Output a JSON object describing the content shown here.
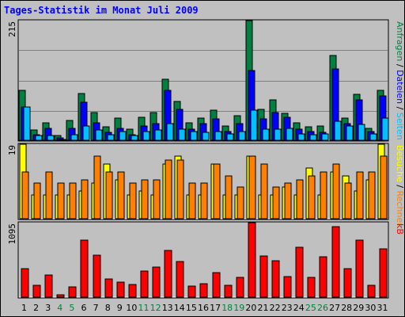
{
  "title": "Tages-Statistik im Monat Juli 2009",
  "colors": {
    "anfragen": "#008040",
    "dateien": "#0000ff",
    "seiten": "#00c0ff",
    "besuche": "#ffff00",
    "rechner": "#ff8000",
    "kb": "#ff0000",
    "weekday": "#000000",
    "weekend": "#008040",
    "background": "#c0c0c0",
    "plot_background": "#c0c0c0"
  },
  "chart_data": [
    {
      "type": "bar",
      "name": "hits",
      "ymax_label": "215",
      "ylim": [
        0,
        215
      ],
      "right_label": {
        "parts": [
          {
            "text": "Anfragen",
            "color": "#008040"
          },
          {
            "text": " / ",
            "color": "#000000"
          },
          {
            "text": "Dateien",
            "color": "#0000ff"
          },
          {
            "text": " / ",
            "color": "#000000"
          },
          {
            "text": "Seiten",
            "color": "#00c0ff"
          }
        ]
      },
      "categories": [
        "1",
        "2",
        "3",
        "4",
        "5",
        "6",
        "7",
        "8",
        "9",
        "10",
        "11",
        "12",
        "13",
        "14",
        "15",
        "16",
        "17",
        "18",
        "19",
        "20",
        "21",
        "22",
        "23",
        "24",
        "25",
        "26",
        "27",
        "28",
        "29",
        "30",
        "31"
      ],
      "series": [
        {
          "name": "Anfragen",
          "color": "#008040",
          "values": [
            90,
            18,
            32,
            8,
            36,
            84,
            50,
            24,
            40,
            20,
            42,
            50,
            109,
            70,
            32,
            40,
            54,
            26,
            44,
            215,
            56,
            73,
            48,
            32,
            24,
            26,
            152,
            40,
            82,
            22,
            90
          ]
        },
        {
          "name": "Dateien",
          "color": "#0000ff",
          "values": [
            60,
            10,
            22,
            4,
            22,
            68,
            32,
            14,
            22,
            10,
            26,
            30,
            90,
            56,
            20,
            30,
            38,
            16,
            30,
            125,
            38,
            50,
            42,
            20,
            16,
            14,
            128,
            30,
            72,
            16,
            80
          ]
        },
        {
          "name": "Seiten",
          "color": "#00c0ff",
          "values": [
            60,
            8,
            8,
            2,
            10,
            26,
            18,
            10,
            16,
            8,
            16,
            18,
            30,
            20,
            16,
            14,
            16,
            12,
            16,
            54,
            20,
            20,
            22,
            12,
            10,
            12,
            34,
            26,
            28,
            12,
            40
          ]
        }
      ]
    },
    {
      "type": "bar",
      "name": "visits",
      "ymax_label": "19",
      "ylim": [
        0,
        19
      ],
      "right_label": {
        "parts": [
          {
            "text": "Besuche",
            "color": "#ffff00"
          },
          {
            "text": " / ",
            "color": "#000000"
          },
          {
            "text": "Rechner",
            "color": "#ff8000"
          }
        ]
      },
      "categories": [
        "1",
        "2",
        "3",
        "4",
        "5",
        "6",
        "7",
        "8",
        "9",
        "10",
        "11",
        "12",
        "13",
        "14",
        "15",
        "16",
        "17",
        "18",
        "19",
        "20",
        "21",
        "22",
        "23",
        "24",
        "25",
        "26",
        "27",
        "28",
        "29",
        "30",
        "31"
      ],
      "series": [
        {
          "name": "Besuche",
          "color": "#ffff00",
          "values": [
            19,
            6,
            6,
            6,
            6,
            7,
            9,
            14,
            10,
            6,
            7,
            6,
            14,
            16,
            6,
            6,
            14,
            6,
            6,
            16,
            6,
            6,
            8,
            6,
            13,
            6,
            12,
            11,
            7,
            10,
            19
          ]
        },
        {
          "name": "Rechner",
          "color": "#ff8000",
          "values": [
            12,
            9,
            12,
            9,
            9,
            10,
            16,
            12,
            12,
            9,
            10,
            10,
            15,
            15,
            9,
            9,
            14,
            11,
            8,
            16,
            14,
            8,
            9,
            10,
            11,
            12,
            14,
            9,
            12,
            12,
            16
          ]
        }
      ]
    },
    {
      "type": "bar",
      "name": "kb",
      "ymax_label": "1095",
      "ylim": [
        0,
        1095
      ],
      "right_label": {
        "parts": [
          {
            "text": "kB",
            "color": "#ff0000"
          }
        ]
      },
      "categories": [
        "1",
        "2",
        "3",
        "4",
        "5",
        "6",
        "7",
        "8",
        "9",
        "10",
        "11",
        "12",
        "13",
        "14",
        "15",
        "16",
        "17",
        "18",
        "19",
        "20",
        "21",
        "22",
        "23",
        "24",
        "25",
        "26",
        "27",
        "28",
        "29",
        "30",
        "31"
      ],
      "series": [
        {
          "name": "kB",
          "color": "#ff0000",
          "values": [
            420,
            170,
            330,
            40,
            150,
            840,
            620,
            270,
            220,
            190,
            380,
            440,
            690,
            530,
            160,
            200,
            360,
            170,
            290,
            1095,
            600,
            540,
            300,
            730,
            290,
            590,
            1040,
            420,
            840,
            170,
            710
          ]
        }
      ]
    }
  ],
  "days": {
    "labels": [
      "1",
      "2",
      "3",
      "4",
      "5",
      "6",
      "7",
      "8",
      "9",
      "10",
      "11",
      "12",
      "13",
      "14",
      "15",
      "16",
      "17",
      "18",
      "19",
      "20",
      "21",
      "22",
      "23",
      "24",
      "25",
      "26",
      "27",
      "28",
      "29",
      "30",
      "31"
    ],
    "weekend": [
      false,
      false,
      false,
      true,
      true,
      false,
      false,
      false,
      false,
      false,
      true,
      true,
      false,
      false,
      false,
      false,
      false,
      true,
      true,
      false,
      false,
      false,
      false,
      false,
      true,
      true,
      false,
      false,
      false,
      false,
      false
    ]
  }
}
